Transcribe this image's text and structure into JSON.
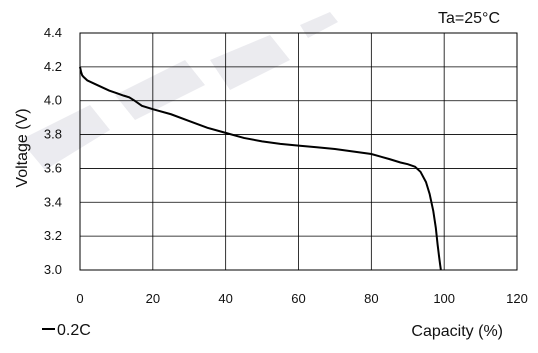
{
  "chart_data": {
    "type": "line",
    "title": "",
    "annotation": "Ta=25°C",
    "xlabel": "Capacity (%)",
    "ylabel": "Voltage (V)",
    "xlim": [
      0,
      120
    ],
    "ylim": [
      3.0,
      4.4
    ],
    "x_ticks": [
      "0",
      "20",
      "40",
      "60",
      "80",
      "100",
      "120"
    ],
    "y_ticks": [
      "3.0",
      "3.2",
      "3.4",
      "3.6",
      "3.8",
      "4.0",
      "4.2",
      "4.4"
    ],
    "grid": true,
    "legend_position": "bottom-left",
    "line_color": "#000000",
    "series": [
      {
        "name": "0.2C",
        "x": [
          0,
          0.3,
          0.6,
          1,
          2,
          4,
          6,
          8,
          10,
          12,
          13.5,
          15,
          17,
          20,
          25,
          30,
          35,
          40,
          45,
          50,
          55,
          60,
          65,
          70,
          75,
          80,
          85,
          88,
          90,
          92,
          93.5,
          95,
          96,
          97,
          97.7,
          98.2,
          98.6,
          98.9,
          99.1
        ],
        "y": [
          4.2,
          4.17,
          4.15,
          4.14,
          4.12,
          4.1,
          4.08,
          4.06,
          4.045,
          4.03,
          4.02,
          4.0,
          3.97,
          3.95,
          3.92,
          3.88,
          3.84,
          3.81,
          3.78,
          3.76,
          3.745,
          3.735,
          3.725,
          3.715,
          3.7,
          3.685,
          3.655,
          3.635,
          3.625,
          3.61,
          3.58,
          3.52,
          3.45,
          3.35,
          3.25,
          3.15,
          3.08,
          3.03,
          3.0
        ]
      }
    ]
  }
}
